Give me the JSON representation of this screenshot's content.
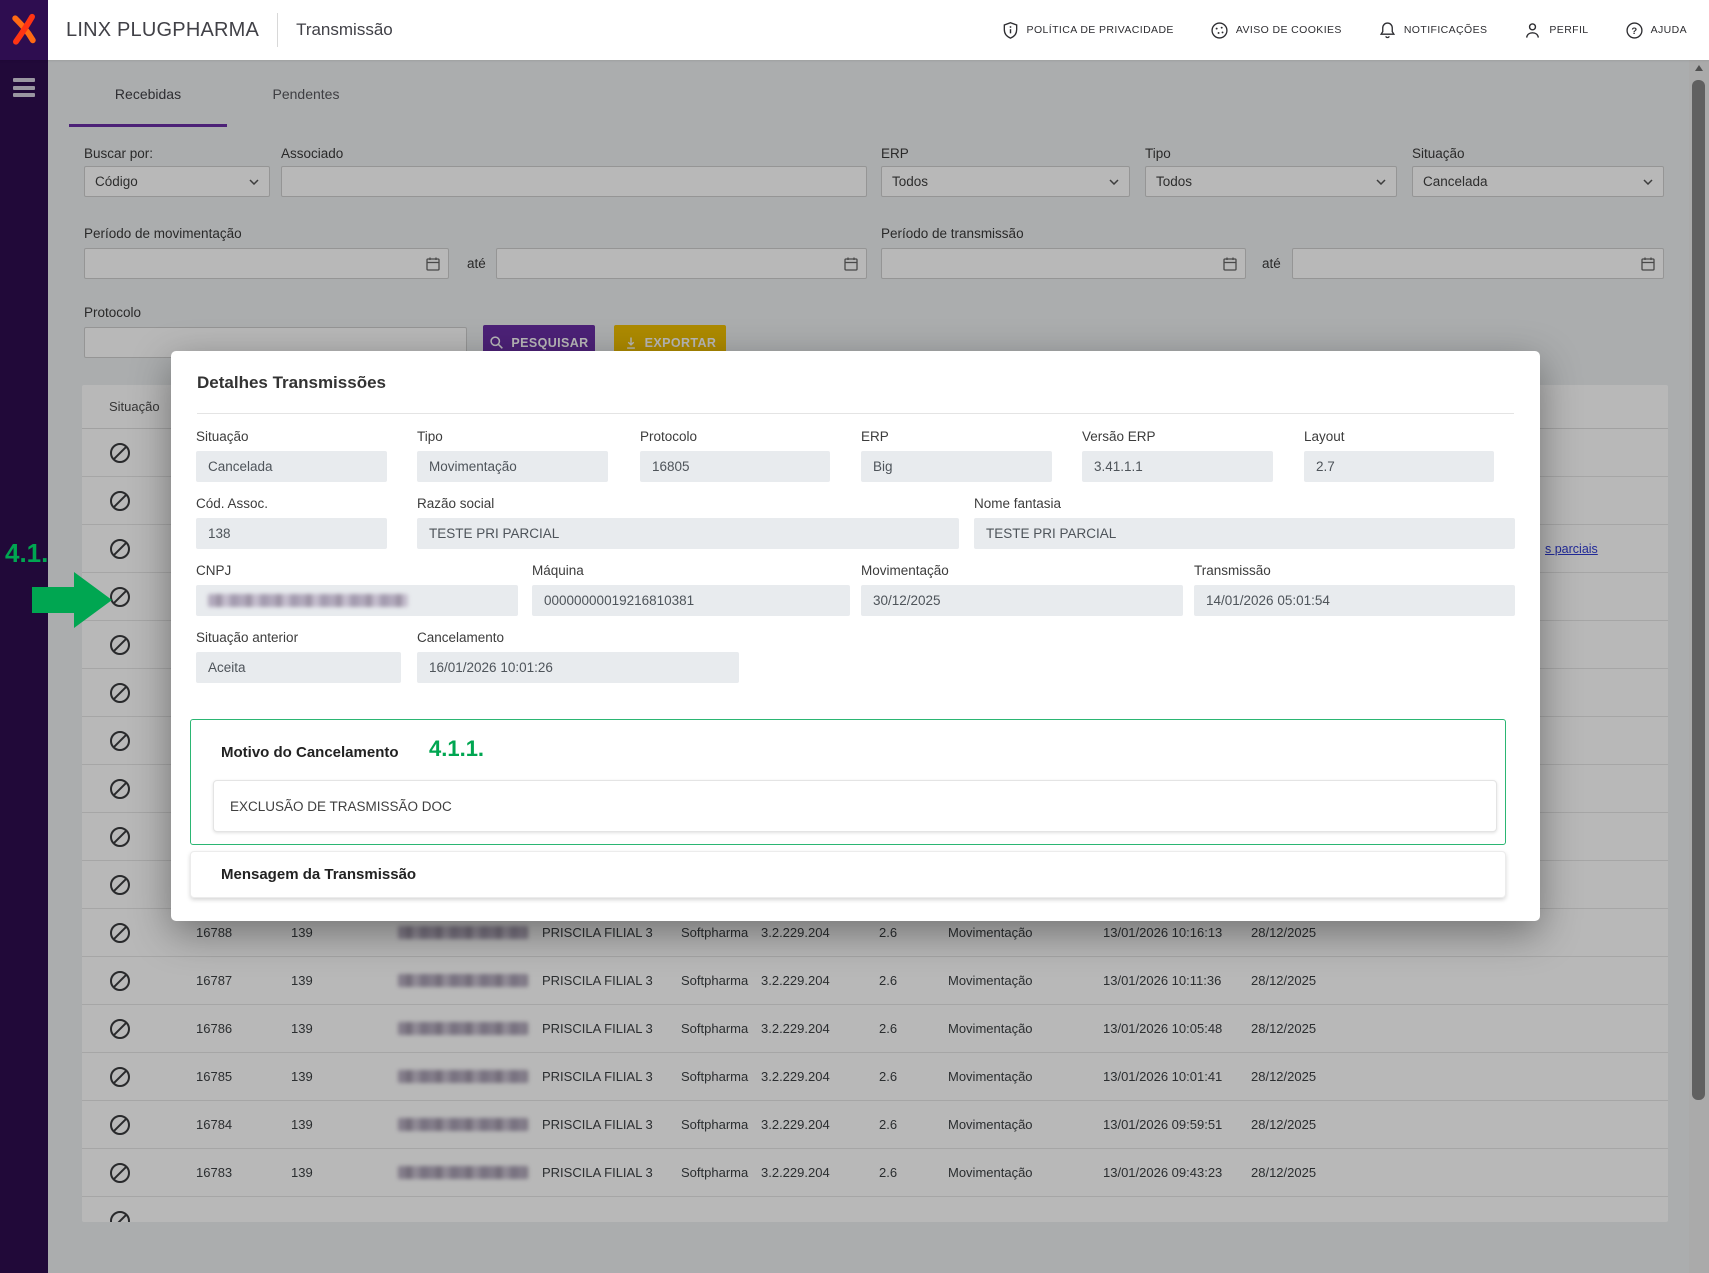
{
  "colors": {
    "brand_purple": "#2e0d50",
    "accent_purple": "#6a2fa5",
    "accent_gold": "#f0bf00",
    "annotation_green": "#00a651",
    "link_blue": "#2f3bd3"
  },
  "header": {
    "brand": "LINX PLUGPHARMA",
    "page_title": "Transmissão",
    "menu": [
      {
        "label": "POLÍTICA DE PRIVACIDADE",
        "icon": "shield-info-icon"
      },
      {
        "label": "AVISO DE COOKIES",
        "icon": "cookie-icon"
      },
      {
        "label": "NOTIFICAÇÕES",
        "icon": "bell-icon"
      },
      {
        "label": "PERFIL",
        "icon": "person-icon"
      },
      {
        "label": "AJUDA",
        "icon": "help-icon"
      }
    ]
  },
  "tabs": {
    "items": [
      {
        "label": "Recebidas",
        "active": true
      },
      {
        "label": "Pendentes",
        "active": false
      }
    ]
  },
  "filters": {
    "buscar_por": {
      "label": "Buscar por:",
      "value": "Código"
    },
    "associado": {
      "label": "Associado",
      "value": ""
    },
    "erp": {
      "label": "ERP",
      "value": "Todos"
    },
    "tipo": {
      "label": "Tipo",
      "value": "Todos"
    },
    "situacao": {
      "label": "Situação",
      "value": "Cancelada"
    },
    "periodo_movimentacao": {
      "label": "Período de movimentação",
      "from_value": "",
      "separator": "até",
      "to_value": ""
    },
    "periodo_transmissao": {
      "label": "Período de transmissão",
      "from_value": "",
      "separator": "até",
      "to_value": ""
    },
    "protocolo": {
      "label": "Protocolo",
      "value": ""
    },
    "pesquisar_button": "PESQUISAR",
    "exportar_button": "EXPORTAR"
  },
  "table": {
    "situacao_header": "Situação",
    "status_icon": "blocked-icon",
    "masked_rows_above": 10,
    "masked_rows_below": 1,
    "partial_link_row": 3,
    "partial_link_text": "s parciais",
    "rows": [
      {
        "protocolo": "16788",
        "codigo": "139",
        "cnpj_redacted": true,
        "nome": "PRISCILA FILIAL 3",
        "erp": "Softpharma",
        "versao": "3.2.229.204",
        "layout": "2.6",
        "tipo": "Movimentação",
        "transmissao": "13/01/2026 10:16:13",
        "movimentacao": "28/12/2025"
      },
      {
        "protocolo": "16787",
        "codigo": "139",
        "cnpj_redacted": true,
        "nome": "PRISCILA FILIAL 3",
        "erp": "Softpharma",
        "versao": "3.2.229.204",
        "layout": "2.6",
        "tipo": "Movimentação",
        "transmissao": "13/01/2026 10:11:36",
        "movimentacao": "28/12/2025"
      },
      {
        "protocolo": "16786",
        "codigo": "139",
        "cnpj_redacted": true,
        "nome": "PRISCILA FILIAL 3",
        "erp": "Softpharma",
        "versao": "3.2.229.204",
        "layout": "2.6",
        "tipo": "Movimentação",
        "transmissao": "13/01/2026 10:05:48",
        "movimentacao": "28/12/2025"
      },
      {
        "protocolo": "16785",
        "codigo": "139",
        "cnpj_redacted": true,
        "nome": "PRISCILA FILIAL 3",
        "erp": "Softpharma",
        "versao": "3.2.229.204",
        "layout": "2.6",
        "tipo": "Movimentação",
        "transmissao": "13/01/2026 10:01:41",
        "movimentacao": "28/12/2025"
      },
      {
        "protocolo": "16784",
        "codigo": "139",
        "cnpj_redacted": true,
        "nome": "PRISCILA FILIAL 3",
        "erp": "Softpharma",
        "versao": "3.2.229.204",
        "layout": "2.6",
        "tipo": "Movimentação",
        "transmissao": "13/01/2026 09:59:51",
        "movimentacao": "28/12/2025"
      },
      {
        "protocolo": "16783",
        "codigo": "139",
        "cnpj_redacted": true,
        "nome": "PRISCILA FILIAL 3",
        "erp": "Softpharma",
        "versao": "3.2.229.204",
        "layout": "2.6",
        "tipo": "Movimentação",
        "transmissao": "13/01/2026 09:43:23",
        "movimentacao": "28/12/2025"
      }
    ]
  },
  "modal": {
    "title": "Detalhes Transmissões",
    "situacao": {
      "label": "Situação",
      "value": "Cancelada"
    },
    "tipo": {
      "label": "Tipo",
      "value": "Movimentação"
    },
    "protocolo": {
      "label": "Protocolo",
      "value": "16805"
    },
    "erp": {
      "label": "ERP",
      "value": "Big"
    },
    "versao_erp": {
      "label": "Versão ERP",
      "value": "3.41.1.1"
    },
    "layout": {
      "label": "Layout",
      "value": "2.7"
    },
    "cod_assoc": {
      "label": "Cód. Assoc.",
      "value": "138"
    },
    "razao_social": {
      "label": "Razão social",
      "value": "TESTE PRI PARCIAL"
    },
    "nome_fantasia": {
      "label": "Nome fantasia",
      "value": "TESTE PRI PARCIAL"
    },
    "cnpj": {
      "label": "CNPJ",
      "value": "",
      "redacted": true
    },
    "maquina": {
      "label": "Máquina",
      "value": "00000000019216810381"
    },
    "movimentacao": {
      "label": "Movimentação",
      "value": "30/12/2025"
    },
    "transmissao": {
      "label": "Transmissão",
      "value": "14/01/2026 05:01:54"
    },
    "situacao_anterior": {
      "label": "Situação anterior",
      "value": "Aceita"
    },
    "cancelamento": {
      "label": "Cancelamento",
      "value": "16/01/2026 10:01:26"
    },
    "motivo": {
      "heading": "Motivo do Cancelamento",
      "value": "EXCLUSÃO DE TRASMISSÃO DOC"
    },
    "mensagem": {
      "heading": "Mensagem da Transmissão"
    }
  },
  "annotations": {
    "step": "4.1.",
    "substep": "4.1.1."
  }
}
